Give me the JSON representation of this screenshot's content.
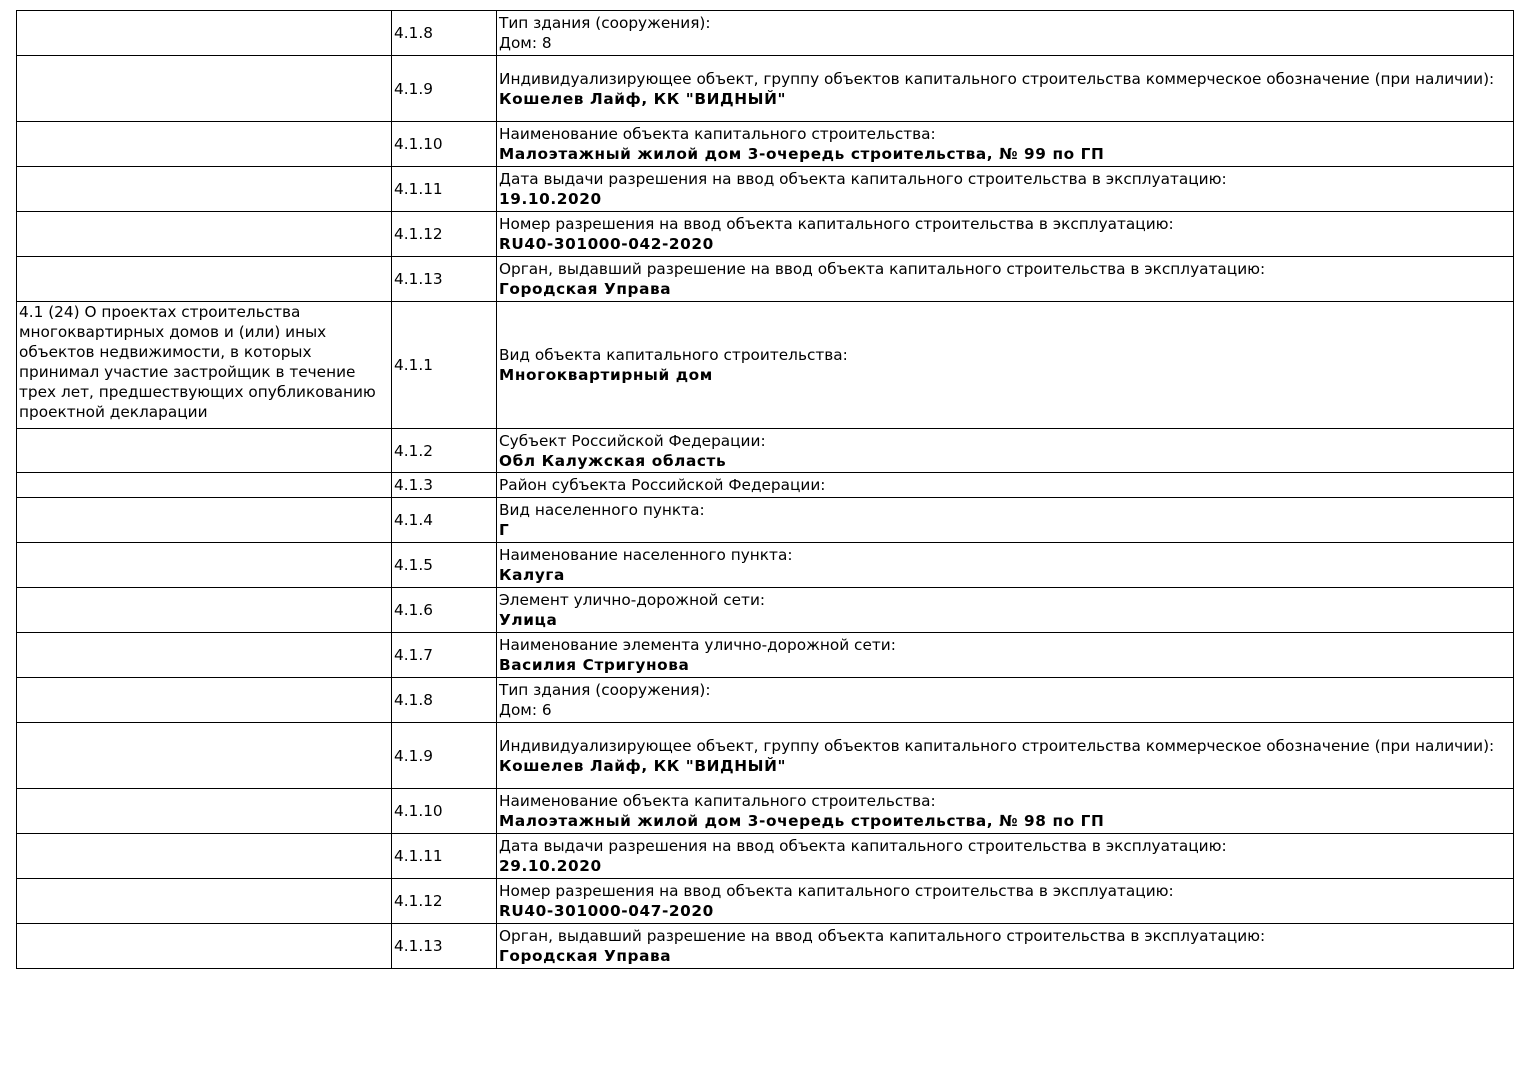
{
  "rows": [
    {
      "section": "",
      "code": "4.1.8",
      "label": "Тип здания (сооружения):",
      "value": "Дом: 8",
      "value_bold": false
    },
    {
      "section": "",
      "code": "4.1.9",
      "label": "Индивидуализирующее объект, группу объектов капитального строительства коммерческое обозначение (при наличии):",
      "value": "Кошелев Лайф, КК \"ВИДНЫЙ\"",
      "value_bold": true
    },
    {
      "section": "",
      "code": "4.1.10",
      "label": "Наименование объекта капитального строительства:",
      "value": "Малоэтажный жилой дом 3-очередь строительства, № 99 по ГП",
      "value_bold": true
    },
    {
      "section": "",
      "code": "4.1.11",
      "label": "Дата выдачи разрешения на ввод объекта капитального строительства в эксплуатацию:",
      "value": "19.10.2020",
      "value_bold": true
    },
    {
      "section": "",
      "code": "4.1.12",
      "label": "Номер разрешения на ввод объекта капитального строительства в эксплуатацию:",
      "value": "RU40-301000-042-2020",
      "value_bold": true
    },
    {
      "section": "",
      "code": "4.1.13",
      "label": "Орган, выдавший разрешение на ввод объекта капитального строительства в эксплуатацию:",
      "value": "Городская Управа",
      "value_bold": true
    },
    {
      "section": "4.1 (24) О проектах строительства многоквартирных домов и (или) иных объектов недвижимости, в которых принимал участие застройщик в течение трех лет, предшествующих опубликованию проектной декларации",
      "code": "4.1.1",
      "label": "Вид объекта капитального строительства:",
      "value": "Многоквартирный дом",
      "value_bold": true
    },
    {
      "section": "",
      "code": "4.1.2",
      "label": "Субъект Российской Федерации:",
      "value": "Обл Калужская область",
      "value_bold": true
    },
    {
      "section": "",
      "code": "4.1.3",
      "label": "Район субъекта Российской Федерации:",
      "value": "",
      "value_bold": true
    },
    {
      "section": "",
      "code": "4.1.4",
      "label": "Вид населенного пункта:",
      "value": "Г",
      "value_bold": true
    },
    {
      "section": "",
      "code": "4.1.5",
      "label": "Наименование населенного пункта:",
      "value": "Калуга",
      "value_bold": true
    },
    {
      "section": "",
      "code": "4.1.6",
      "label": "Элемент улично-дорожной сети:",
      "value": "Улица",
      "value_bold": true
    },
    {
      "section": "",
      "code": "4.1.7",
      "label": "Наименование элемента улично-дорожной сети:",
      "value": "Василия Стригунова",
      "value_bold": true
    },
    {
      "section": "",
      "code": "4.1.8",
      "label": "Тип здания (сооружения):",
      "value": "Дом: 6",
      "value_bold": false
    },
    {
      "section": "",
      "code": "4.1.9",
      "label": "Индивидуализирующее объект, группу объектов капитального строительства коммерческое обозначение (при наличии):",
      "value": "Кошелев Лайф, КК \"ВИДНЫЙ\"",
      "value_bold": true
    },
    {
      "section": "",
      "code": "4.1.10",
      "label": "Наименование объекта капитального строительства:",
      "value": "Малоэтажный жилой дом 3-очередь строительства, № 98 по ГП",
      "value_bold": true
    },
    {
      "section": "",
      "code": "4.1.11",
      "label": "Дата выдачи разрешения на ввод объекта капитального строительства в эксплуатацию:",
      "value": "29.10.2020",
      "value_bold": true
    },
    {
      "section": "",
      "code": "4.1.12",
      "label": "Номер разрешения на ввод объекта капитального строительства в эксплуатацию:",
      "value": "RU40-301000-047-2020",
      "value_bold": true
    },
    {
      "section": "",
      "code": "4.1.13",
      "label": "Орган, выдавший разрешение на ввод объекта капитального строительства в эксплуатацию:",
      "value": "Городская Управа",
      "value_bold": true
    }
  ]
}
